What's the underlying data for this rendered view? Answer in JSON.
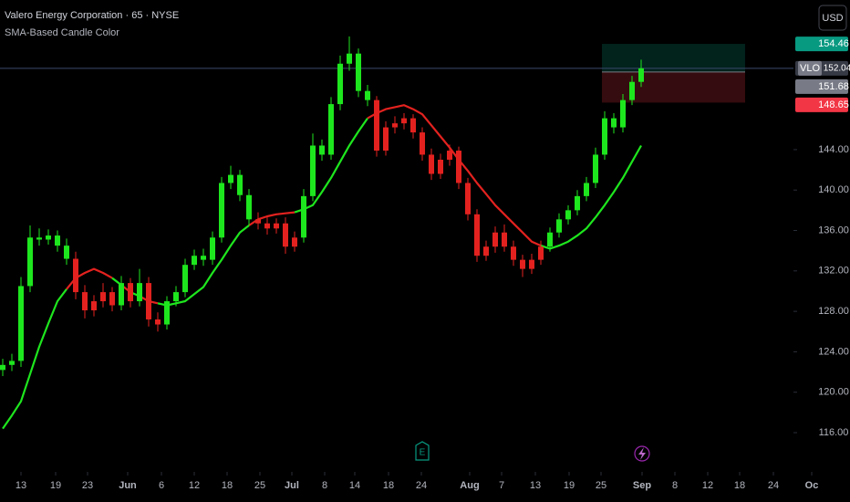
{
  "chart_data": {
    "type": "candlestick",
    "title": "Valero Energy Corporation · 65 · NYSE",
    "subtitle": "SMA-Based Candle Color",
    "currency": "USD",
    "symbol": "VLO",
    "up_color": "#1ee61e",
    "down_color": "#e3221f",
    "open": [
      122.2,
      122.7,
      123.1,
      130.5,
      135.3,
      135.1,
      135.5,
      134.5,
      133.2,
      129.9,
      128.1,
      129,
      129.9,
      128.6,
      130.8,
      129,
      130.8,
      127.2,
      126.7,
      129,
      129.9,
      132.6,
      133.5,
      133.1,
      135.3,
      140.7,
      141.5,
      139.5,
      137.1,
      136.7,
      136.2,
      136.7,
      134.4,
      135.3,
      139.4,
      144.4,
      143.5,
      148.5,
      152.5,
      153.5,
      149.8,
      148.9,
      143.9,
      146.2,
      146.6,
      147.1,
      145.7,
      143.5,
      141.6,
      143,
      143.9,
      140.7,
      137.6,
      133.5,
      134.4,
      135.8,
      134.4,
      133.1,
      132.2,
      133.1,
      134.4,
      135.8,
      137.1,
      138,
      139.4,
      140.7,
      143.5,
      147.1,
      146.2,
      148.9,
      150.7
    ],
    "high": [
      123.3,
      123.8,
      131.4,
      136.5,
      136.2,
      136.1,
      136,
      135.2,
      133.9,
      130.6,
      129.6,
      130.8,
      130.4,
      131.5,
      131.3,
      132.2,
      131.4,
      127.9,
      129.5,
      130.5,
      133.2,
      134.1,
      134.2,
      135.9,
      141.3,
      142.4,
      142,
      140.1,
      137.8,
      137.3,
      137.2,
      137.3,
      135.9,
      140.1,
      145.6,
      145,
      149.2,
      153.3,
      155.2,
      154,
      150.4,
      149.3,
      146.8,
      147.3,
      147.6,
      147.5,
      146.2,
      144.1,
      143.6,
      144.5,
      144.3,
      141.2,
      138.1,
      135,
      136.4,
      136.6,
      135,
      133.6,
      133.7,
      135,
      136.3,
      137.7,
      138.5,
      140,
      141.3,
      144.2,
      147.8,
      147.6,
      149.5,
      151.3,
      152.9
    ],
    "low": [
      121.6,
      122.1,
      122.5,
      129.9,
      134.5,
      134.6,
      133.9,
      132.6,
      129.2,
      127.3,
      127.5,
      128.4,
      128,
      128.1,
      128.4,
      128.5,
      126.5,
      126,
      126.2,
      128.5,
      129.4,
      132.1,
      132.5,
      132.6,
      134.8,
      140.1,
      138.9,
      136.5,
      136.1,
      135.6,
      135.7,
      133.7,
      133.9,
      134.8,
      138.9,
      142.9,
      143,
      147.9,
      151.8,
      149.2,
      148.3,
      143.3,
      143.4,
      145.6,
      146,
      145.1,
      142.9,
      141,
      141.1,
      142.4,
      140.1,
      137,
      132.9,
      133,
      133.8,
      133.9,
      132.5,
      131.4,
      131.7,
      132.6,
      133.9,
      135.3,
      136.6,
      137.5,
      138.9,
      140.2,
      143,
      145.6,
      145.7,
      148.4,
      150.2
    ],
    "close": [
      122.7,
      123.1,
      130.5,
      135.3,
      135.1,
      135.5,
      134.5,
      133.2,
      129.9,
      128.1,
      129,
      129.9,
      128.6,
      130.8,
      129,
      130.8,
      127.2,
      126.7,
      129,
      129.9,
      132.6,
      133.5,
      133.1,
      135.3,
      140.7,
      141.5,
      139.5,
      137.1,
      136.7,
      136.2,
      136.7,
      134.4,
      135.3,
      139.4,
      144.4,
      143.5,
      148.5,
      152.5,
      153.5,
      149.8,
      148.9,
      143.9,
      146.2,
      146.6,
      147.1,
      145.7,
      143.5,
      141.6,
      143,
      143.9,
      140.7,
      137.6,
      133.5,
      134.4,
      135.8,
      134.4,
      133.1,
      132.2,
      133.1,
      134.4,
      135.8,
      137.1,
      138,
      139.4,
      140.7,
      143.5,
      147.1,
      146.2,
      148.9,
      150.7,
      152.04
    ],
    "sma": [
      116.4,
      117.7,
      119.1,
      121.8,
      124.5,
      126.8,
      129,
      130.2,
      131.3,
      131.8,
      132.2,
      131.8,
      131.3,
      130.6,
      129.9,
      129.5,
      129,
      128.8,
      128.6,
      128.8,
      129,
      129.7,
      130.4,
      131.8,
      133.1,
      134.5,
      135.8,
      136.5,
      137.1,
      137.4,
      137.6,
      137.7,
      137.8,
      138.1,
      138.5,
      139.8,
      141.2,
      142.8,
      144.4,
      145.8,
      147.1,
      147.6,
      148,
      148.2,
      148.4,
      148,
      147.5,
      146.4,
      145.3,
      144.2,
      143,
      141.9,
      140.7,
      139.6,
      138.5,
      137.6,
      136.7,
      135.8,
      134.9,
      134.5,
      134.2,
      134.5,
      134.9,
      135.5,
      136.2,
      137.3,
      138.5,
      139.8,
      141.2,
      142.8,
      144.4
    ],
    "xlim": [
      -0.3,
      88.7
    ],
    "xticks": [
      {
        "value": 2,
        "label": "13"
      },
      {
        "value": 5.8,
        "label": "19"
      },
      {
        "value": 9.3,
        "label": "23"
      },
      {
        "value": 13.7,
        "label": "Jun"
      },
      {
        "value": 17.4,
        "label": "6"
      },
      {
        "value": 21,
        "label": "12"
      },
      {
        "value": 24.6,
        "label": "18"
      },
      {
        "value": 28.2,
        "label": "25"
      },
      {
        "value": 31.7,
        "label": "Jul"
      },
      {
        "value": 35.3,
        "label": "8"
      },
      {
        "value": 38.6,
        "label": "14"
      },
      {
        "value": 42.3,
        "label": "18"
      },
      {
        "value": 45.9,
        "label": "24"
      },
      {
        "value": 51.2,
        "label": "Aug"
      },
      {
        "value": 54.7,
        "label": "7"
      },
      {
        "value": 58.4,
        "label": "13"
      },
      {
        "value": 62.1,
        "label": "19"
      },
      {
        "value": 65.6,
        "label": "25"
      },
      {
        "value": 70.1,
        "label": "Sep"
      },
      {
        "value": 73.7,
        "label": "8"
      },
      {
        "value": 77.3,
        "label": "12"
      },
      {
        "value": 80.8,
        "label": "18"
      },
      {
        "value": 84.5,
        "label": "24"
      },
      {
        "value": 88.7,
        "label": "Oc"
      }
    ],
    "ylim": [
      112.3,
      158.8
    ],
    "yticks": [
      {
        "value": 116,
        "label": "116.00"
      },
      {
        "value": 120,
        "label": "120.00"
      },
      {
        "value": 124,
        "label": "124.00"
      },
      {
        "value": 128,
        "label": "128.00"
      },
      {
        "value": 132,
        "label": "132.00"
      },
      {
        "value": 136,
        "label": "136.00"
      },
      {
        "value": 140,
        "label": "140.00"
      },
      {
        "value": 144,
        "label": "144.00"
      }
    ],
    "price_badges": [
      {
        "value": 154.46,
        "color": "#089981"
      },
      {
        "value": 152.04,
        "color": "#363a45"
      },
      {
        "value": 151.68,
        "color": "#787b86"
      },
      {
        "value": 148.65,
        "color": "#f23645"
      }
    ]
  }
}
